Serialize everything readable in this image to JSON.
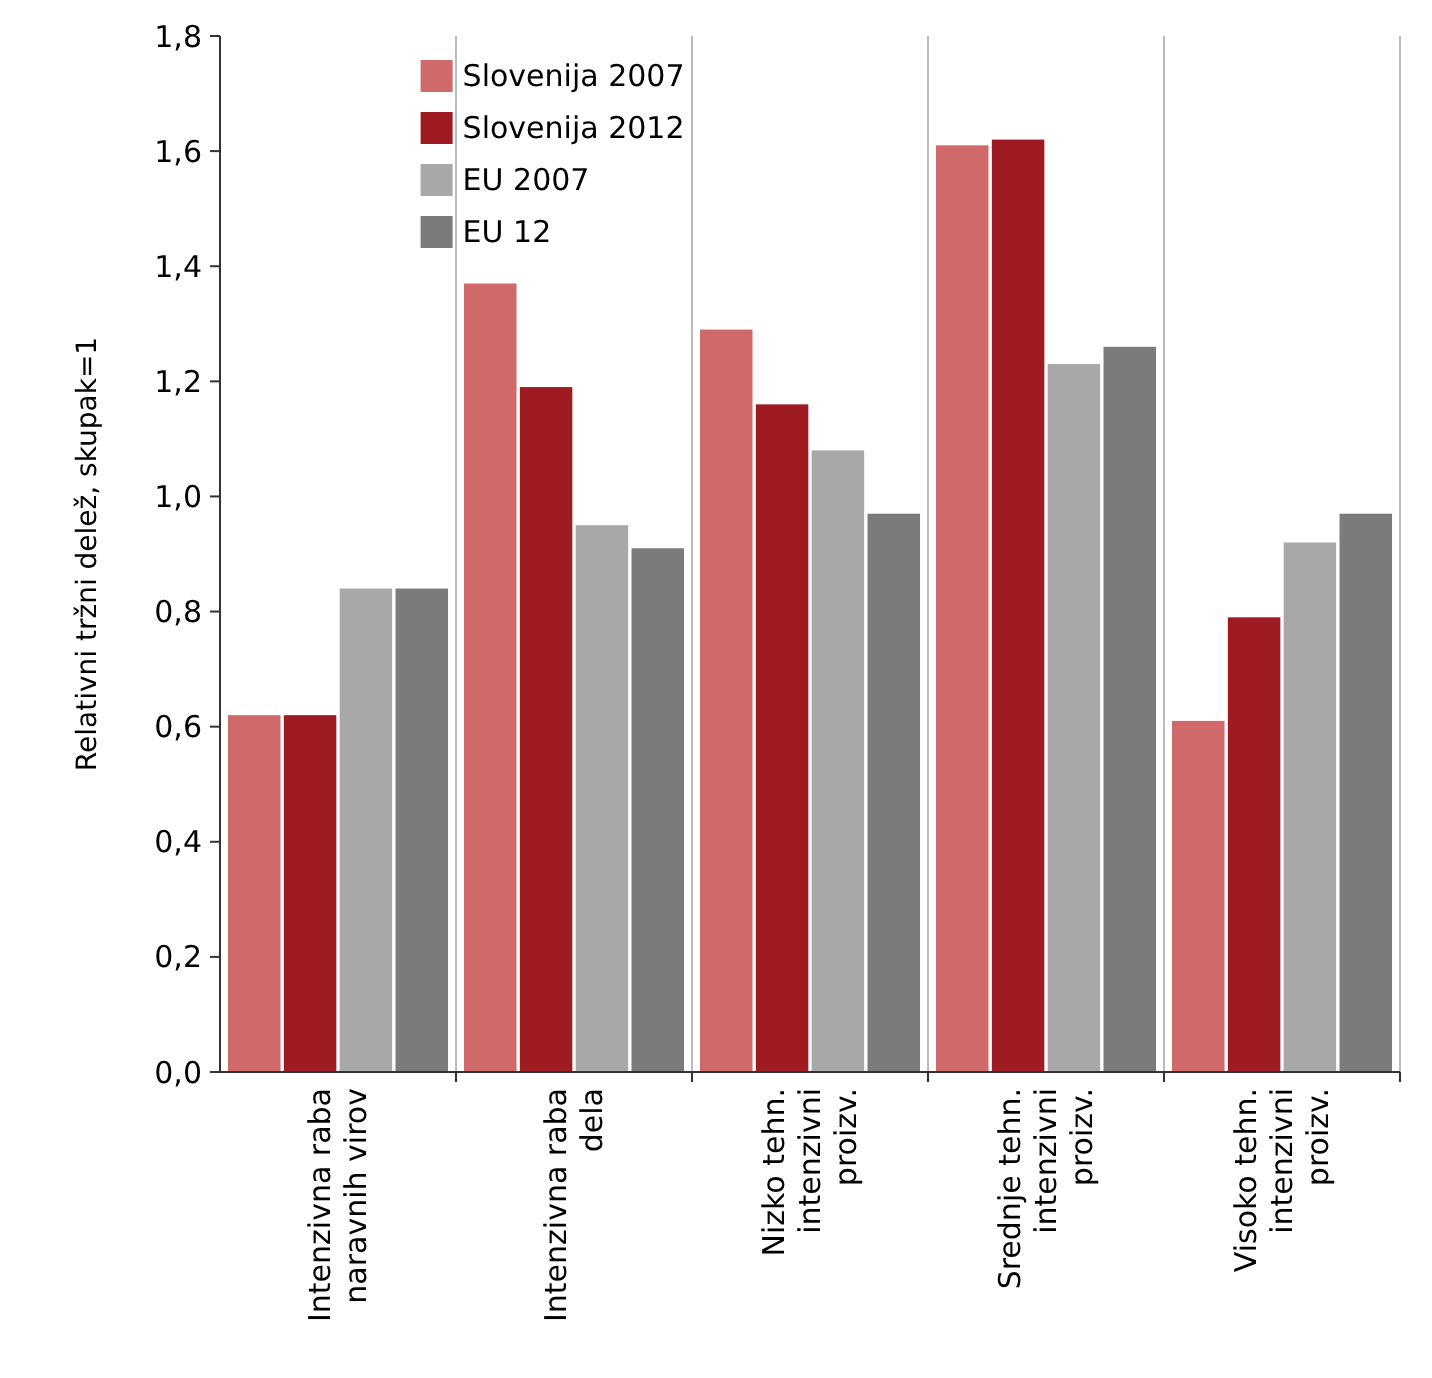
{
  "chart_data": {
    "type": "bar",
    "ylabel": "Relativni tržni delež, skupak=1",
    "categories": [
      "Intenzivna raba naravnih virov",
      "Intenzivna raba dela",
      "Nizko tehn. intenzivni proizv.",
      "Srednje tehn. intenzivni proizv.",
      "Visoko tehn. intenzivni proizv."
    ],
    "series": [
      {
        "name": "Slovenija 2007",
        "color": "#d06a6a",
        "values": [
          0.62,
          1.37,
          1.29,
          1.61,
          0.61
        ]
      },
      {
        "name": "Slovenija 2012",
        "color": "#9e1b22",
        "values": [
          0.62,
          1.19,
          1.16,
          1.62,
          0.79
        ]
      },
      {
        "name": "EU 2007",
        "color": "#a8a8a8",
        "values": [
          0.84,
          0.95,
          1.08,
          1.23,
          0.92
        ]
      },
      {
        "name": "EU 12",
        "color": "#7b7b7b",
        "values": [
          0.84,
          0.91,
          0.97,
          1.26,
          0.97
        ]
      }
    ],
    "ylim": [
      0,
      1.8
    ],
    "yticks": [
      {
        "value": 0,
        "label": "0,0"
      },
      {
        "value": 0.2,
        "label": "0,2"
      },
      {
        "value": 0.4,
        "label": "0,4"
      },
      {
        "value": 0.6,
        "label": "0,6"
      },
      {
        "value": 0.8,
        "label": "0,8"
      },
      {
        "value": 1,
        "label": "1,0"
      },
      {
        "value": 1.2,
        "label": "1,2"
      },
      {
        "value": 1.4,
        "label": "1,4"
      },
      {
        "value": 1.6,
        "label": "1,6"
      },
      {
        "value": 1.8,
        "label": "1,8"
      }
    ],
    "grid": "x",
    "legend": "top left"
  }
}
